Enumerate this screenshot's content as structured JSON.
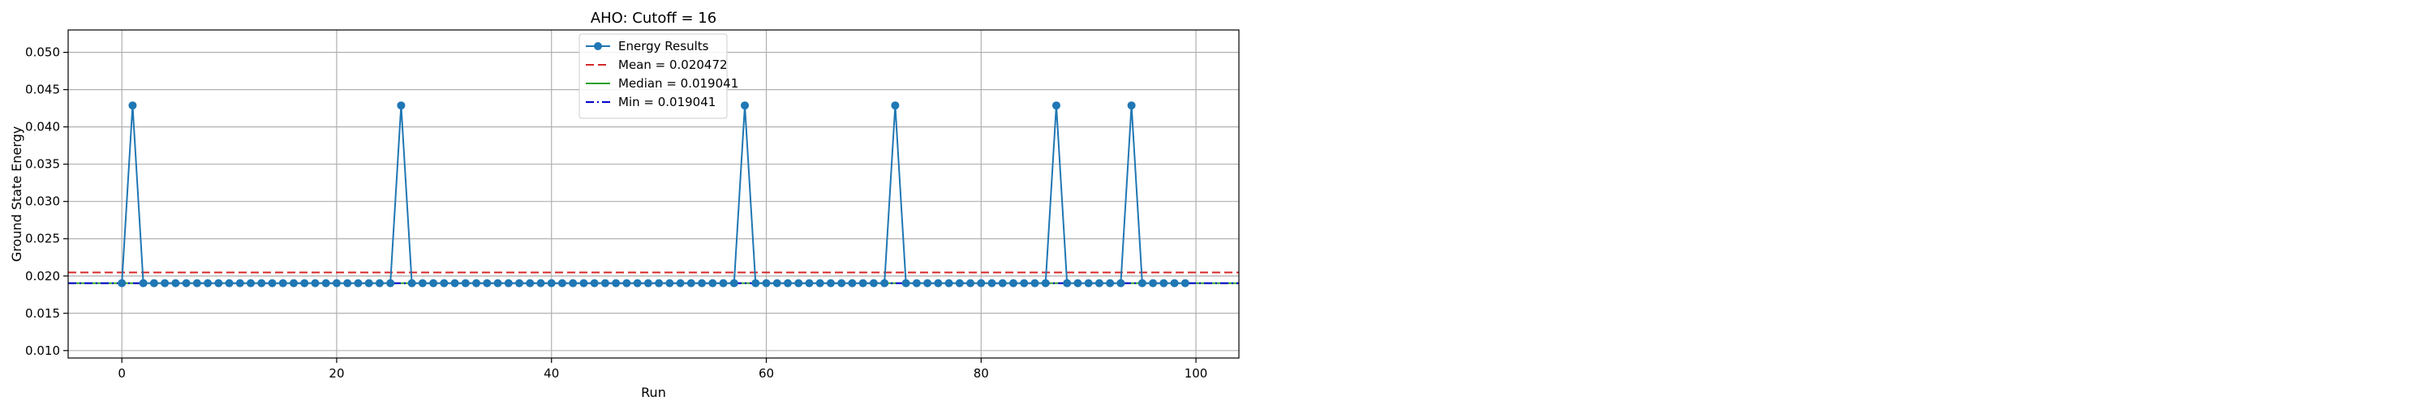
{
  "chart_data": {
    "type": "line",
    "title": "AHO: Cutoff = 16",
    "xlabel": "Run",
    "ylabel": "Ground State Energy",
    "xlim": [
      -5,
      104
    ],
    "ylim": [
      0.009,
      0.053
    ],
    "xticks": [
      0,
      20,
      40,
      60,
      80,
      100
    ],
    "yticks": [
      0.01,
      0.015,
      0.02,
      0.025,
      0.03,
      0.035,
      0.04,
      0.045,
      0.05
    ],
    "grid": true,
    "legend_position": "top-center",
    "colors": {
      "series": "#1f77b4",
      "mean": "#d62728",
      "median": "#2ca02c",
      "min": "#0000cc"
    },
    "series": [
      {
        "name": "Energy Results",
        "x_start": 0,
        "x_step": 1,
        "values": [
          0.019041,
          0.042875,
          0.019041,
          0.019041,
          0.019041,
          0.019041,
          0.019041,
          0.019041,
          0.019041,
          0.019041,
          0.019041,
          0.019041,
          0.019041,
          0.019041,
          0.019041,
          0.019041,
          0.019041,
          0.019041,
          0.019041,
          0.019041,
          0.019041,
          0.019041,
          0.019041,
          0.019041,
          0.019041,
          0.019041,
          0.042875,
          0.019041,
          0.019041,
          0.019041,
          0.019041,
          0.019041,
          0.019041,
          0.019041,
          0.019041,
          0.019041,
          0.019041,
          0.019041,
          0.019041,
          0.019041,
          0.019041,
          0.019041,
          0.019041,
          0.019041,
          0.019041,
          0.019041,
          0.019041,
          0.019041,
          0.019041,
          0.019041,
          0.019041,
          0.019041,
          0.019041,
          0.019041,
          0.019041,
          0.019041,
          0.019041,
          0.019041,
          0.042875,
          0.019041,
          0.019041,
          0.019041,
          0.019041,
          0.019041,
          0.019041,
          0.019041,
          0.019041,
          0.019041,
          0.019041,
          0.019041,
          0.019041,
          0.019041,
          0.042875,
          0.019041,
          0.019041,
          0.019041,
          0.019041,
          0.019041,
          0.019041,
          0.019041,
          0.019041,
          0.019041,
          0.019041,
          0.019041,
          0.019041,
          0.019041,
          0.019041,
          0.042875,
          0.019041,
          0.019041,
          0.019041,
          0.019041,
          0.019041,
          0.019041,
          0.042875,
          0.019041,
          0.019041,
          0.019041,
          0.019041,
          0.019041
        ]
      }
    ],
    "reference_lines": [
      {
        "name": "Mean = 0.020472",
        "value": 0.020472,
        "style": "dashed",
        "color_key": "mean"
      },
      {
        "name": "Median = 0.019041",
        "value": 0.019041,
        "style": "solid",
        "color_key": "median"
      },
      {
        "name": "Min = 0.019041",
        "value": 0.019041,
        "style": "dashdot",
        "color_key": "min"
      }
    ]
  }
}
